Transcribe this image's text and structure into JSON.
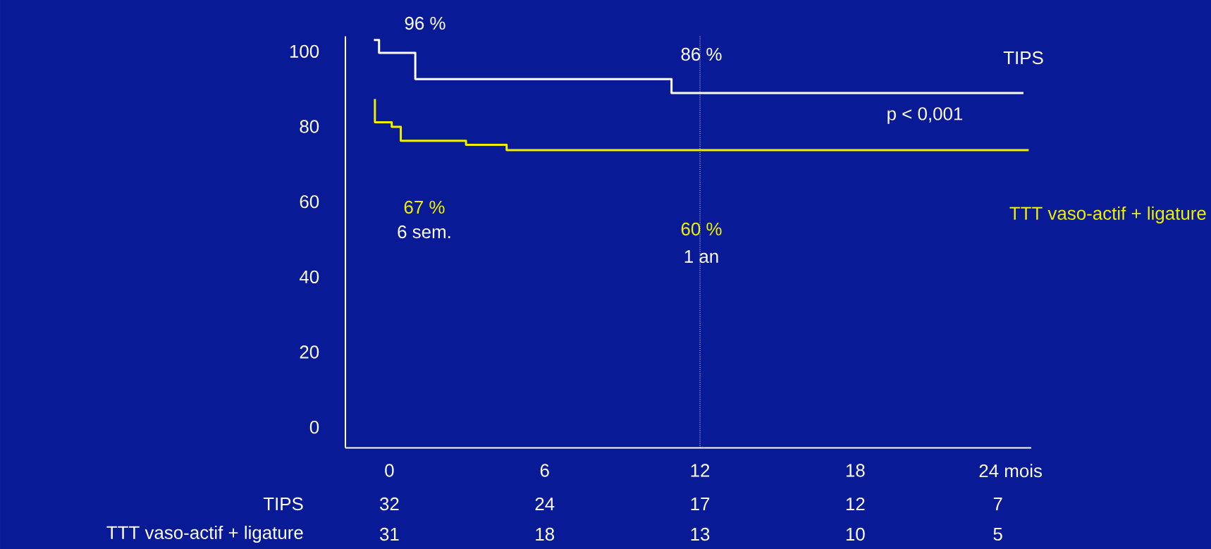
{
  "chart_data": {
    "type": "step",
    "xlim": [
      -1.7,
      24.8
    ],
    "ylim": [
      -5.5,
      104
    ],
    "xticks": [
      0,
      6,
      12,
      18,
      {
        "value": 24,
        "label": "24 mois"
      }
    ],
    "yticks": [
      0,
      20,
      40,
      60,
      80,
      100
    ],
    "grid": false,
    "legend": false,
    "marker": "none",
    "line_style": "solid",
    "series": [
      {
        "name": "TIPS",
        "color": "#ffffff",
        "x": [
          -0.6,
          -0.4,
          1.0,
          10.9,
          24.5
        ],
        "values": [
          103,
          99.6,
          92.6,
          88.9,
          88.9
        ]
      },
      {
        "name": "TTT vaso-actif + ligature",
        "color": "#f0f000",
        "x": [
          -0.56,
          -0.56,
          0.09,
          0.44,
          2.96,
          4.53,
          24.7
        ],
        "values": [
          87.3,
          81.1,
          79.9,
          76.2,
          75.1,
          73.7,
          73.7
        ]
      }
    ],
    "ref_lines": [
      {
        "axis": "x",
        "value": 12,
        "color": "#ffffff",
        "line_style": "dotted"
      }
    ],
    "annotations": [
      "96 %",
      "86 %",
      "p < 0,001",
      "67 %",
      "6 sem.",
      "60 %",
      "1 an",
      "TIPS",
      "32",
      "24",
      "17",
      "12",
      "7",
      "TTT vaso-actif + ligature",
      "31",
      "18",
      "13",
      "10",
      "5"
    ]
  }
}
